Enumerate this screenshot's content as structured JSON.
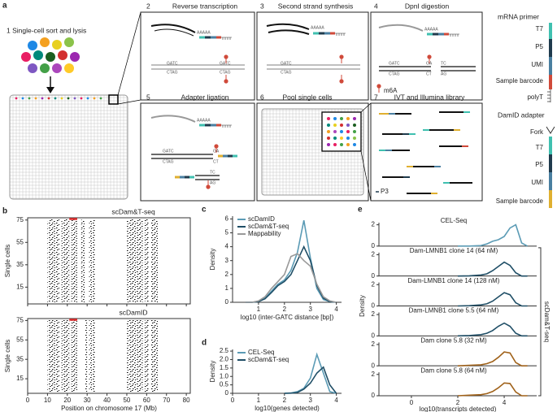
{
  "figure": {
    "panel_a": {
      "letter": "a",
      "step1": "1 Single-cell sort and lysis",
      "steps": [
        {
          "number": "2",
          "title": "Reverse transcription"
        },
        {
          "number": "3",
          "title": "Second strand synthesis"
        },
        {
          "number": "4",
          "title": "DpnI digestion"
        },
        {
          "number": "5",
          "title": "Adapter ligation"
        },
        {
          "number": "6",
          "title": "Pool single cells"
        },
        {
          "number": "7",
          "title": "IVT and Illumina library"
        }
      ],
      "mrna_primer": {
        "title": "mRNA primer",
        "parts": [
          "T7",
          "P5",
          "UMI",
          "Sample barcode",
          "polyT"
        ]
      },
      "damid_adapter": {
        "title": "DamID adapter",
        "fork": "Fork",
        "parts": [
          "T7",
          "P5",
          "UMI",
          "Sample barcode"
        ]
      },
      "m6a": "m6A",
      "p3": "P3",
      "seq": {
        "polya": "AAAAA",
        "gatc": "GATC",
        "ctag": "CTAG",
        "ga": "GA",
        "ct": "CT",
        "tc": "TC",
        "ag": "AG"
      }
    }
  },
  "chart_data": [
    {
      "type": "raster",
      "letter": "b",
      "title": "scDam&T-seq",
      "ylabel": "Single cells",
      "xlim": [
        0,
        82
      ],
      "xticks": [
        0,
        10,
        20,
        30,
        40,
        50,
        60,
        70,
        80
      ],
      "ylim": [
        0,
        77
      ],
      "yticks": [
        15,
        35,
        55,
        75
      ],
      "domains": [
        [
          10,
          16
        ],
        [
          17,
          21
        ],
        [
          22,
          25
        ],
        [
          27,
          29
        ],
        [
          31,
          34
        ],
        [
          50,
          58
        ],
        [
          59,
          61
        ],
        [
          62,
          66
        ]
      ],
      "highlight": [
        21,
        25
      ],
      "color": "#000000",
      "highlight_color": "#e03030"
    },
    {
      "type": "raster",
      "title": "scDamID",
      "ylabel": "Single cells",
      "xlabel": "Position on chromosome 17 (Mb)",
      "xlim": [
        0,
        82
      ],
      "xticks": [
        0,
        10,
        20,
        30,
        40,
        50,
        60,
        70,
        80
      ],
      "ylim": [
        0,
        77
      ],
      "yticks": [
        15,
        35,
        55,
        75
      ],
      "domains": [
        [
          10,
          16
        ],
        [
          17,
          21
        ],
        [
          22,
          25
        ],
        [
          29,
          30
        ],
        [
          31,
          34
        ],
        [
          50,
          58
        ],
        [
          59,
          61
        ],
        [
          62,
          66
        ]
      ],
      "highlight": [
        21,
        25
      ],
      "color": "#000000",
      "highlight_color": "#e03030"
    },
    {
      "type": "line",
      "letter": "c",
      "xlabel": "log10 (inter-GATC distance [bp])",
      "ylabel": "Density",
      "xlim": [
        0,
        4.2
      ],
      "xticks": [
        1,
        2,
        3,
        4
      ],
      "ylim": [
        0,
        6.2
      ],
      "yticks": [
        0,
        1,
        2,
        3,
        4,
        5,
        6
      ],
      "legend": "upper left",
      "x": [
        0.5,
        0.75,
        1,
        1.25,
        1.5,
        1.75,
        2,
        2.25,
        2.5,
        2.75,
        3,
        3.25,
        3.5,
        3.75,
        4
      ],
      "series": [
        {
          "name": "scDamID",
          "color": "#5b9bb5",
          "values": [
            0,
            0,
            0.05,
            0.3,
            0.8,
            1.3,
            1.6,
            2.3,
            3.6,
            5.9,
            3.2,
            1.0,
            0.2,
            0.05,
            0
          ]
        },
        {
          "name": "scDam&T-seq",
          "color": "#1f4e66",
          "values": [
            0,
            0,
            0.05,
            0.25,
            0.7,
            1.2,
            1.5,
            2.0,
            3.0,
            4.0,
            3.0,
            1.2,
            0.3,
            0.05,
            0
          ]
        },
        {
          "name": "Mappability",
          "color": "#999999",
          "values": [
            0,
            0,
            0.1,
            0.4,
            1.0,
            1.5,
            2.0,
            3.3,
            3.5,
            3.0,
            2.6,
            1.3,
            0.4,
            0.1,
            0
          ]
        }
      ]
    },
    {
      "type": "line",
      "letter": "d",
      "xlabel": "log10(genes detected)",
      "ylabel": "Density",
      "xlim": [
        0,
        4.2
      ],
      "xticks": [
        0,
        1,
        2,
        3,
        4
      ],
      "ylim": [
        0,
        2.6
      ],
      "yticks": [
        0,
        0.5,
        {
          "value": 1,
          "label": "1.0"
        },
        1.5,
        {
          "value": 2,
          "label": "2.0"
        },
        2.5
      ],
      "legend": "upper left",
      "x": [
        2,
        2.25,
        2.5,
        2.75,
        3,
        3.25,
        3.5,
        3.75,
        4
      ],
      "series": [
        {
          "name": "CEL-Seq",
          "color": "#5b9bb5",
          "values": [
            0,
            0.02,
            0.1,
            0.3,
            0.9,
            2.3,
            1.2,
            0.1,
            0
          ]
        },
        {
          "name": "scDam&T-seq",
          "color": "#1f4e66",
          "values": [
            0,
            0.01,
            0.05,
            0.25,
            0.6,
            1.2,
            1.55,
            0.5,
            0
          ]
        }
      ]
    },
    {
      "type": "ridgeline",
      "letter": "e",
      "xlabel": "log10(transcripts detected)",
      "ylabel": "Density",
      "group_label": "scDam&T-seq",
      "xlim": [
        -1.4,
        5.4
      ],
      "xticks": [
        0,
        2,
        4
      ],
      "ylim": [
        0,
        2.2
      ],
      "yticks": [
        0,
        2
      ],
      "x": [
        2,
        2.5,
        3,
        3.25,
        3.5,
        3.75,
        4,
        4.25,
        4.5,
        4.75,
        5
      ],
      "series": [
        {
          "name": "CEL-Seq",
          "color": "#5b9bb5",
          "values": [
            0,
            0,
            0.05,
            0.2,
            0.45,
            0.6,
            0.9,
            1.7,
            2.0,
            0.3,
            0
          ]
        },
        {
          "name": "Dam-LMNB1 clone 14 (64 nM)",
          "color": "#1f4e66",
          "values": [
            0,
            0.02,
            0.1,
            0.2,
            0.5,
            0.9,
            1.3,
            1.0,
            0.3,
            0,
            0
          ]
        },
        {
          "name": "Dam-LMNB1 clone 14 (128 nM)",
          "color": "#1f4e66",
          "values": [
            0,
            0.02,
            0.1,
            0.2,
            0.45,
            0.85,
            1.25,
            1.05,
            0.3,
            0,
            0
          ]
        },
        {
          "name": "Dam-LMNB1 clone 5.5 (64 nM)",
          "color": "#1f4e66",
          "values": [
            0,
            0.03,
            0.12,
            0.25,
            0.5,
            0.9,
            1.2,
            0.9,
            0.25,
            0,
            0
          ]
        },
        {
          "name": "Dam clone 5.8 (32 nM)",
          "color": "#a0621a",
          "values": [
            0,
            0.05,
            0.1,
            0.2,
            0.4,
            0.8,
            1.3,
            1.2,
            0.3,
            0,
            0
          ]
        },
        {
          "name": "Dam clone 5.8 (64 nM)",
          "color": "#a0621a",
          "values": [
            0,
            0.05,
            0.1,
            0.2,
            0.4,
            0.75,
            1.2,
            1.15,
            0.35,
            0,
            0
          ]
        }
      ]
    }
  ]
}
